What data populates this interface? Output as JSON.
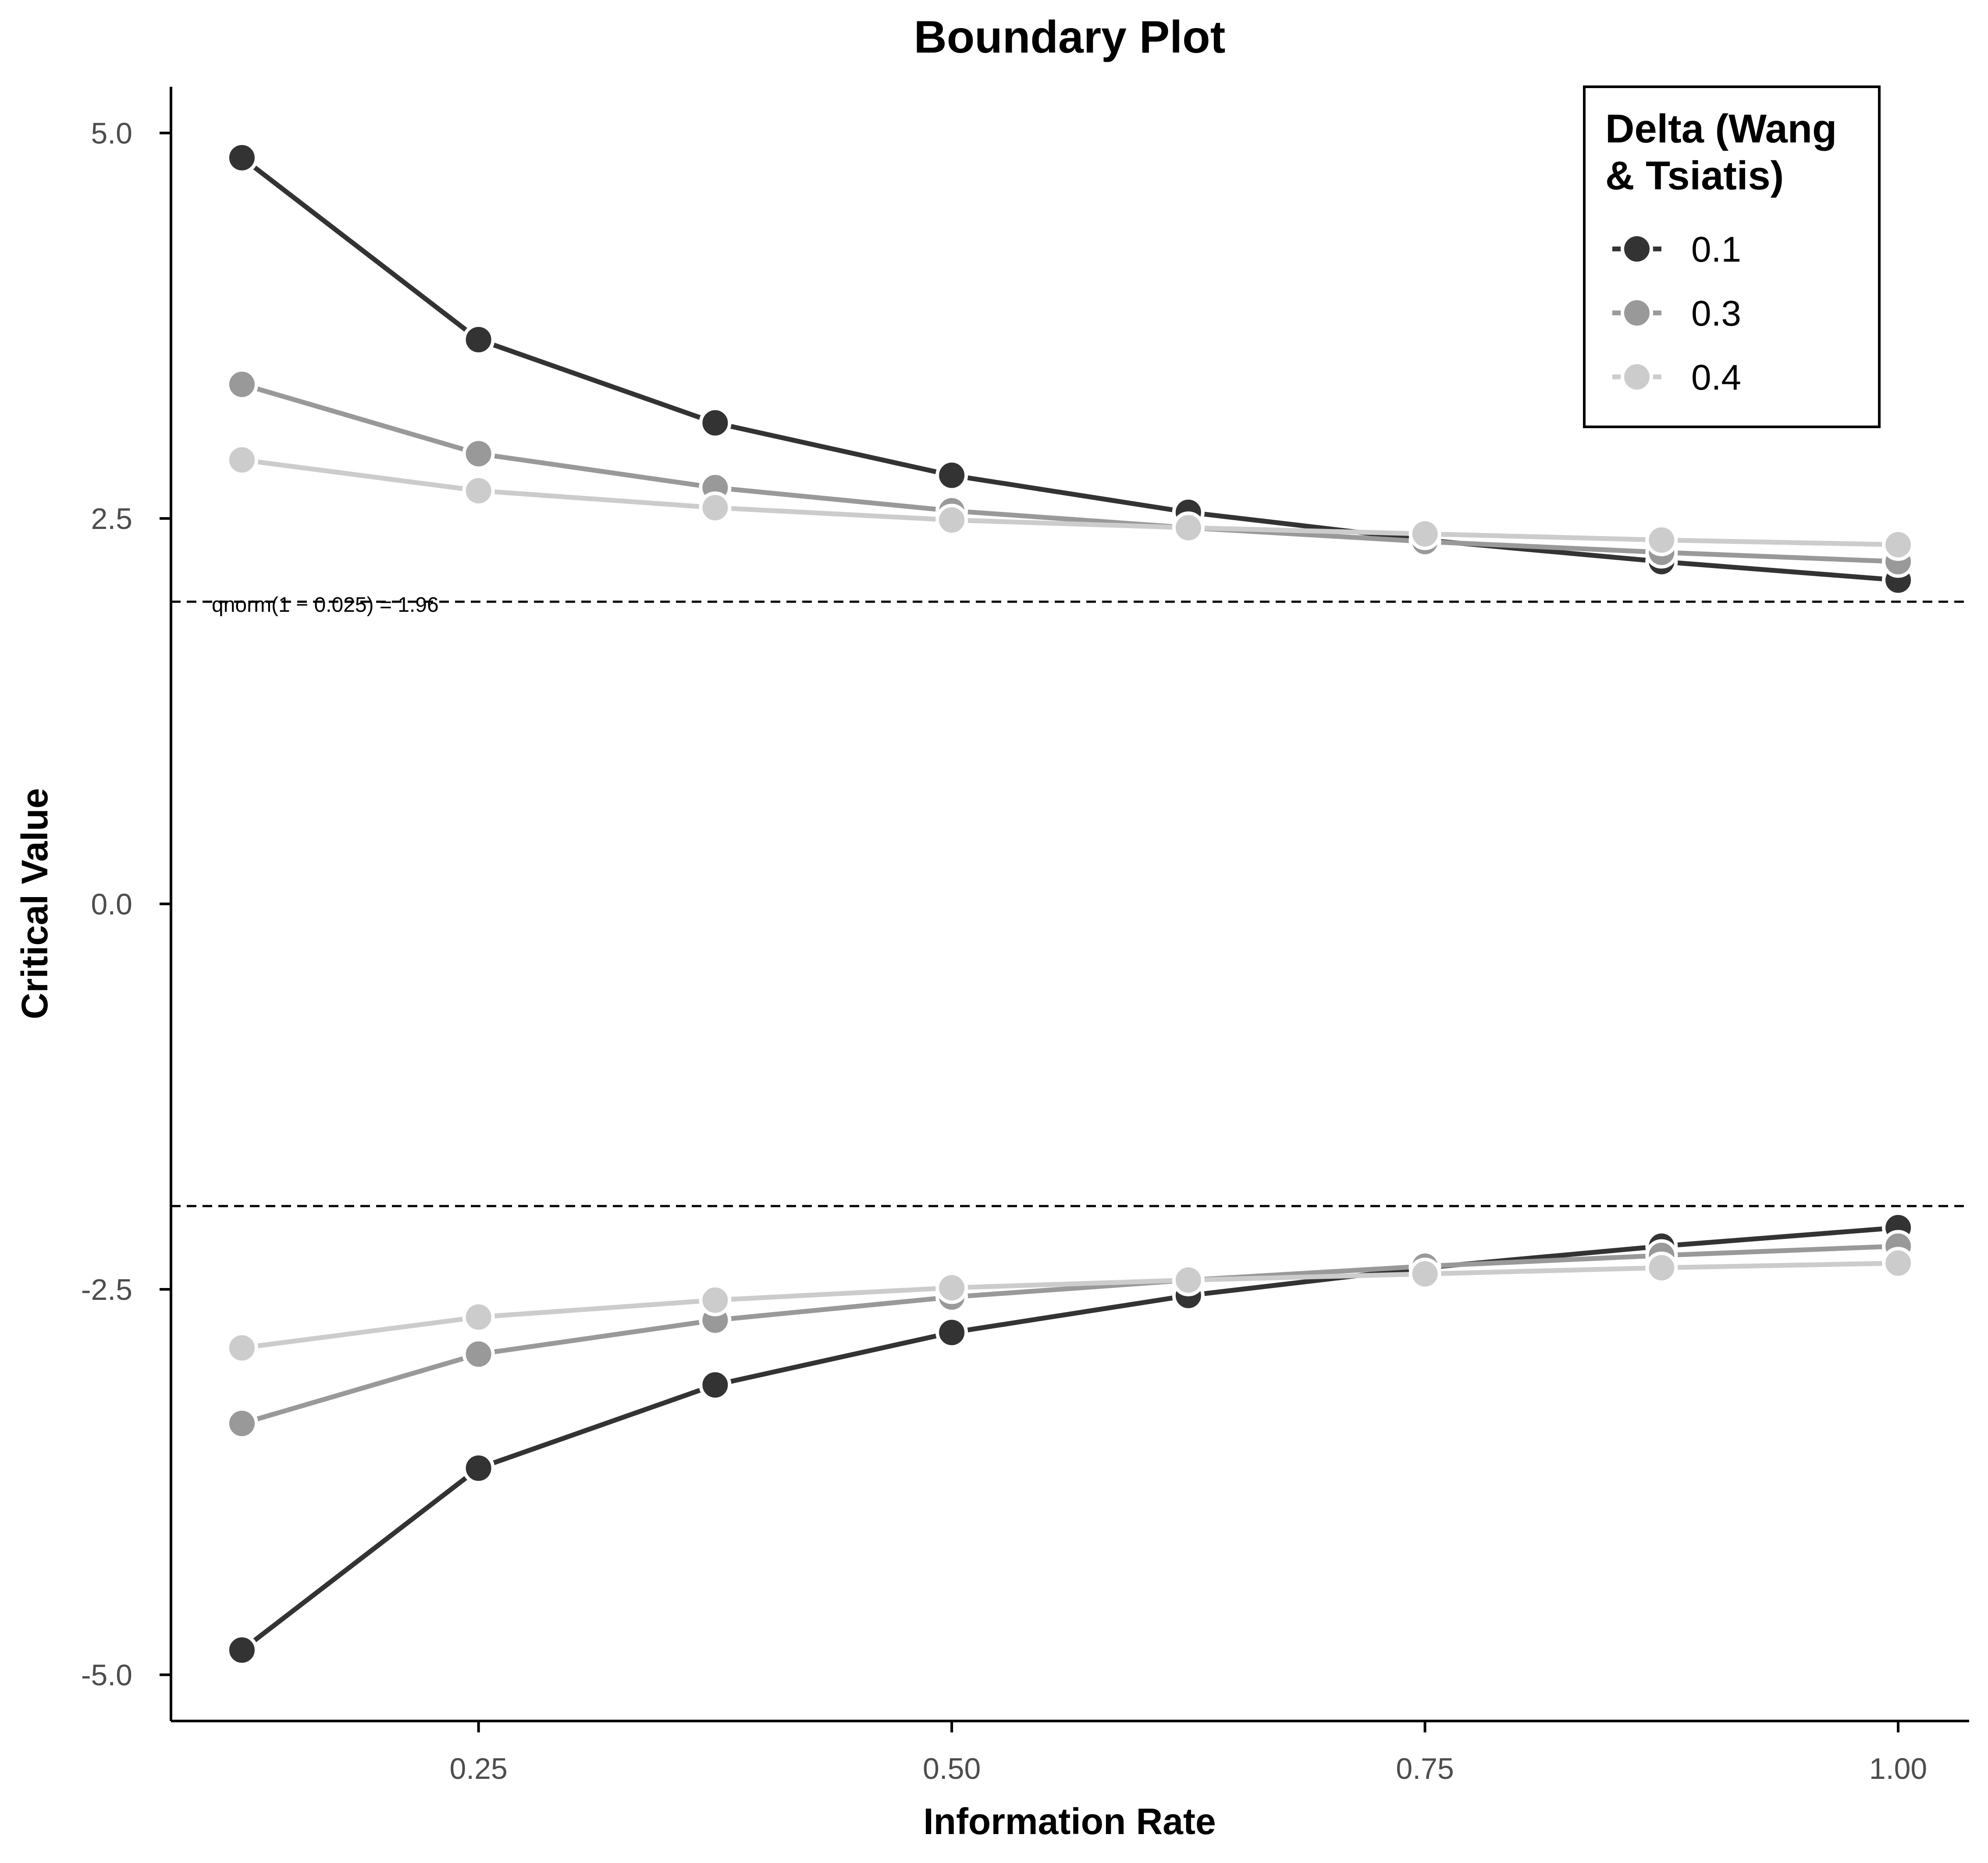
{
  "chart_data": {
    "type": "line",
    "title": "Boundary Plot",
    "xlabel": "Information Rate",
    "ylabel": "Critical Value",
    "xlim": [
      0.0875,
      1.0375
    ],
    "ylim": [
      -5.3,
      5.3
    ],
    "x_ticks": [
      0.25,
      0.5,
      0.75,
      1.0
    ],
    "x_tick_labels": [
      "0.25",
      "0.50",
      "0.75",
      "1.00"
    ],
    "y_ticks": [
      5.0,
      2.5,
      0.0,
      -2.5,
      -5.0
    ],
    "y_tick_labels": [
      "5.0",
      "2.5",
      "0.0",
      "-2.5",
      "-5.0"
    ],
    "grid": false,
    "reference_lines": [
      {
        "y": 1.96,
        "style": "dashed",
        "label": "qnorm(1 − 0.025) = 1.96"
      },
      {
        "y": -1.96,
        "style": "dashed",
        "label": ""
      }
    ],
    "legend": {
      "title_lines": [
        "Delta (Wang",
        "& Tsiatis)"
      ],
      "placement": "top-right"
    },
    "x": [
      0.125,
      0.25,
      0.375,
      0.5,
      0.625,
      0.75,
      0.875,
      1.0
    ],
    "series": [
      {
        "name": "0.1",
        "color": "#333333",
        "upper": [
          4.84,
          3.66,
          3.12,
          2.78,
          2.54,
          2.36,
          2.22,
          2.1
        ],
        "lower": [
          -4.84,
          -3.66,
          -3.12,
          -2.78,
          -2.54,
          -2.36,
          -2.22,
          -2.1
        ]
      },
      {
        "name": "0.3",
        "color": "#999999",
        "upper": [
          3.37,
          2.92,
          2.7,
          2.55,
          2.44,
          2.35,
          2.28,
          2.22
        ],
        "lower": [
          -3.37,
          -2.92,
          -2.7,
          -2.55,
          -2.44,
          -2.35,
          -2.28,
          -2.22
        ]
      },
      {
        "name": "0.4",
        "color": "#cccccc",
        "upper": [
          2.88,
          2.68,
          2.57,
          2.49,
          2.44,
          2.4,
          2.36,
          2.33
        ],
        "lower": [
          -2.88,
          -2.68,
          -2.57,
          -2.49,
          -2.44,
          -2.4,
          -2.36,
          -2.33
        ]
      }
    ]
  }
}
